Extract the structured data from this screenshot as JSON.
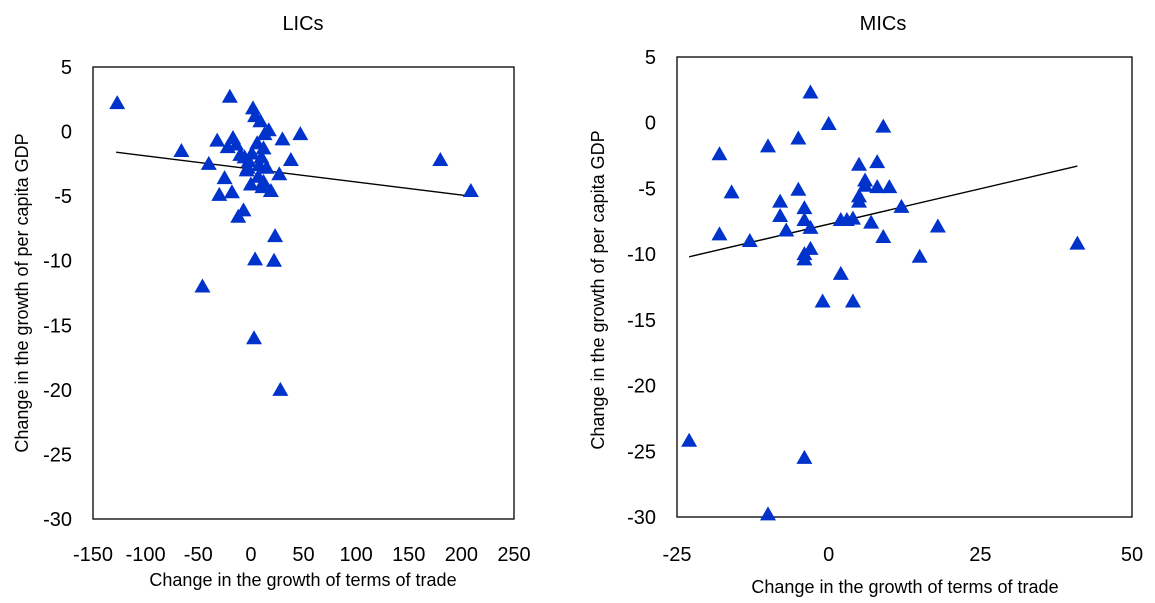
{
  "chart_data": [
    {
      "type": "scatter",
      "title": "LICs",
      "xlabel": "Change in the growth of terms of trade",
      "ylabel": "Change in the growth of per capita GDP",
      "xlim": [
        -150,
        250
      ],
      "ylim": [
        -30,
        5
      ],
      "xticks": [
        -150,
        -100,
        -50,
        0,
        50,
        100,
        150,
        200,
        250
      ],
      "xtick_labels": [
        "-150",
        "-100",
        "-50",
        "0",
        "50",
        "100",
        "150",
        "200",
        "250"
      ],
      "yticks": [
        5,
        0,
        -5,
        -10,
        -15,
        -20,
        -25,
        -30
      ],
      "ytick_labels": [
        "5",
        "0",
        "-5",
        "-10",
        "-15",
        "-20",
        "-25",
        "-30"
      ],
      "grid": false,
      "marker": "triangle",
      "color": "#0033cc",
      "points": [
        [
          -127,
          2.2
        ],
        [
          -66,
          -1.5
        ],
        [
          -40,
          -2.5
        ],
        [
          -46,
          -12.0
        ],
        [
          -32,
          -0.7
        ],
        [
          -30,
          -4.9
        ],
        [
          -25,
          -3.6
        ],
        [
          -22,
          -1.2
        ],
        [
          -20,
          2.7
        ],
        [
          -17,
          -0.5
        ],
        [
          -18,
          -4.7
        ],
        [
          -14,
          -1.0
        ],
        [
          -12,
          -6.6
        ],
        [
          -10,
          -1.8
        ],
        [
          -7,
          -6.1
        ],
        [
          -6,
          -2.0
        ],
        [
          -4,
          -3.0
        ],
        [
          -2,
          -2.3
        ],
        [
          0,
          -4.1
        ],
        [
          1,
          -1.7
        ],
        [
          2,
          1.8
        ],
        [
          3,
          -16.0
        ],
        [
          4,
          -9.9
        ],
        [
          4,
          1.2
        ],
        [
          6,
          -0.9
        ],
        [
          7,
          -3.5
        ],
        [
          8,
          -2.6
        ],
        [
          9,
          0.8
        ],
        [
          10,
          -2.0
        ],
        [
          11,
          -4.3
        ],
        [
          12,
          -1.3
        ],
        [
          13,
          -0.2
        ],
        [
          15,
          -2.8
        ],
        [
          17,
          0.1
        ],
        [
          19,
          -4.6
        ],
        [
          22,
          -10.0
        ],
        [
          23,
          -8.1
        ],
        [
          27,
          -3.3
        ],
        [
          28,
          -20.0
        ],
        [
          30,
          -0.6
        ],
        [
          38,
          -2.2
        ],
        [
          47,
          -0.2
        ],
        [
          180,
          -2.2
        ],
        [
          209,
          -4.6
        ],
        [
          12,
          -3.9
        ],
        [
          -3,
          -2.8
        ]
      ],
      "trendline": {
        "x": [
          -128,
          209
        ],
        "y": [
          -1.6,
          -5.0
        ]
      }
    },
    {
      "type": "scatter",
      "title": "MICs",
      "xlabel": "Change in the growth of terms of trade",
      "ylabel": "Change in the growth of per capita GDP",
      "xlim": [
        -25,
        50
      ],
      "ylim": [
        -30,
        5
      ],
      "xticks": [
        -25,
        0,
        25,
        50
      ],
      "xtick_labels": [
        "-25",
        "0",
        "25",
        "50"
      ],
      "yticks": [
        5,
        0,
        -5,
        -10,
        -15,
        -20,
        -25,
        -30
      ],
      "ytick_labels": [
        "5",
        "0",
        "-5",
        "-10",
        "-15",
        "-20",
        "-25",
        "-30"
      ],
      "grid": false,
      "marker": "triangle",
      "color": "#0033cc",
      "points": [
        [
          -23,
          -24.2
        ],
        [
          -18,
          -8.5
        ],
        [
          -18,
          -2.4
        ],
        [
          -16,
          -5.3
        ],
        [
          -13,
          -9.0
        ],
        [
          -10,
          -1.8
        ],
        [
          -10,
          -29.8
        ],
        [
          -8,
          -7.1
        ],
        [
          -8,
          -6.0
        ],
        [
          -7,
          -8.2
        ],
        [
          -5,
          -5.1
        ],
        [
          -5,
          -1.2
        ],
        [
          -4,
          -7.4
        ],
        [
          -4,
          -6.5
        ],
        [
          -4,
          -10.0
        ],
        [
          -4,
          -10.4
        ],
        [
          -4,
          -25.5
        ],
        [
          -3,
          -9.6
        ],
        [
          -3,
          -8.0
        ],
        [
          -3,
          2.3
        ],
        [
          -1,
          -13.6
        ],
        [
          0,
          -0.1
        ],
        [
          2,
          -11.5
        ],
        [
          2,
          -7.4
        ],
        [
          3,
          -7.4
        ],
        [
          4,
          -7.3
        ],
        [
          4,
          -13.6
        ],
        [
          5,
          -3.2
        ],
        [
          5,
          -5.6
        ],
        [
          6,
          -4.4
        ],
        [
          6,
          -4.8
        ],
        [
          7,
          -7.6
        ],
        [
          8,
          -3.0
        ],
        [
          8,
          -4.9
        ],
        [
          9,
          -0.3
        ],
        [
          9,
          -8.7
        ],
        [
          10,
          -4.9
        ],
        [
          12,
          -6.4
        ],
        [
          15,
          -10.2
        ],
        [
          18,
          -7.9
        ],
        [
          41,
          -9.2
        ],
        [
          5,
          -6.0
        ]
      ],
      "trendline": {
        "x": [
          -23,
          41
        ],
        "y": [
          -10.2,
          -3.3
        ]
      }
    }
  ]
}
